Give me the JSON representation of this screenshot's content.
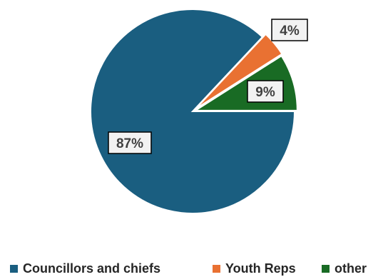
{
  "chart_data": {
    "type": "pie",
    "title": "",
    "categories": [
      "Councillors and chiefs",
      "Youth Reps",
      "other"
    ],
    "values": [
      87,
      4,
      9
    ],
    "labels": [
      "87%",
      "4%",
      "9%"
    ],
    "colors": [
      "#1a5e80",
      "#e97132",
      "#196b24"
    ],
    "legend_position": "bottom"
  }
}
